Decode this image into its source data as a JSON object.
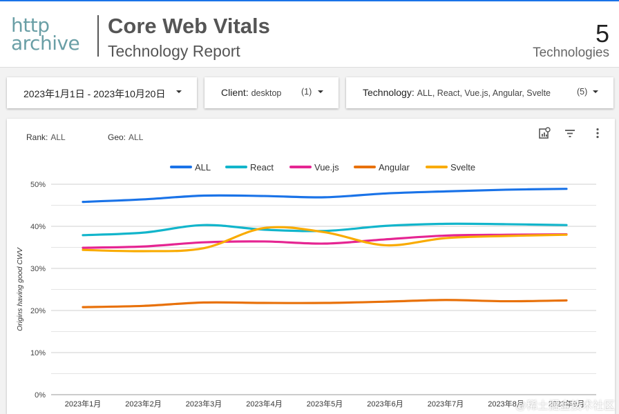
{
  "header": {
    "logo_line1": "http",
    "logo_line2": "archive",
    "title": "Core Web Vitals",
    "subtitle": "Technology Report",
    "count": "5",
    "count_label": "Technologies"
  },
  "filters": {
    "date_range": "2023年1月1日 - 2023年10月20日",
    "client_label": "Client",
    "client_value": "desktop",
    "client_count": "(1)",
    "tech_label": "Technology",
    "tech_value": "ALL, React, Vue.js, Angular, Svelte",
    "tech_count": "(5)"
  },
  "card": {
    "rank_label": "Rank:",
    "rank_value": "ALL",
    "geo_label": "Geo:",
    "geo_value": "ALL"
  },
  "watermark": "@稀土掘金技术社区",
  "colors": {
    "ALL": "#1a73e8",
    "React": "#12b5cb",
    "Vue.js": "#e52592",
    "Angular": "#e8710a",
    "Svelte": "#f9ab00"
  },
  "chart_data": {
    "type": "line",
    "ylabel": "Origins having good CWV",
    "xlabel": "",
    "ylim": [
      0,
      50
    ],
    "yticks": [
      "0%",
      "10%",
      "20%",
      "30%",
      "40%",
      "50%"
    ],
    "categories": [
      "2023年1月",
      "2023年2月",
      "2023年3月",
      "2023年4月",
      "2023年5月",
      "2023年6月",
      "2023年7月",
      "2023年8月",
      "2023年9月"
    ],
    "legend_position": "top-center",
    "series": [
      {
        "name": "ALL",
        "values": [
          45.8,
          46.4,
          47.3,
          47.2,
          46.9,
          47.8,
          48.3,
          48.7,
          48.9
        ]
      },
      {
        "name": "React",
        "values": [
          37.9,
          38.5,
          40.3,
          39.2,
          38.9,
          40.1,
          40.6,
          40.5,
          40.3
        ]
      },
      {
        "name": "Vue.js",
        "values": [
          34.9,
          35.2,
          36.2,
          36.4,
          35.9,
          36.9,
          37.8,
          38.0,
          38.1
        ]
      },
      {
        "name": "Angular",
        "values": [
          20.8,
          21.1,
          21.9,
          21.8,
          21.8,
          22.1,
          22.5,
          22.2,
          22.4
        ]
      },
      {
        "name": "Svelte",
        "values": [
          34.4,
          34.1,
          34.8,
          39.6,
          38.6,
          35.5,
          37.2,
          37.7,
          38.0
        ]
      }
    ]
  }
}
